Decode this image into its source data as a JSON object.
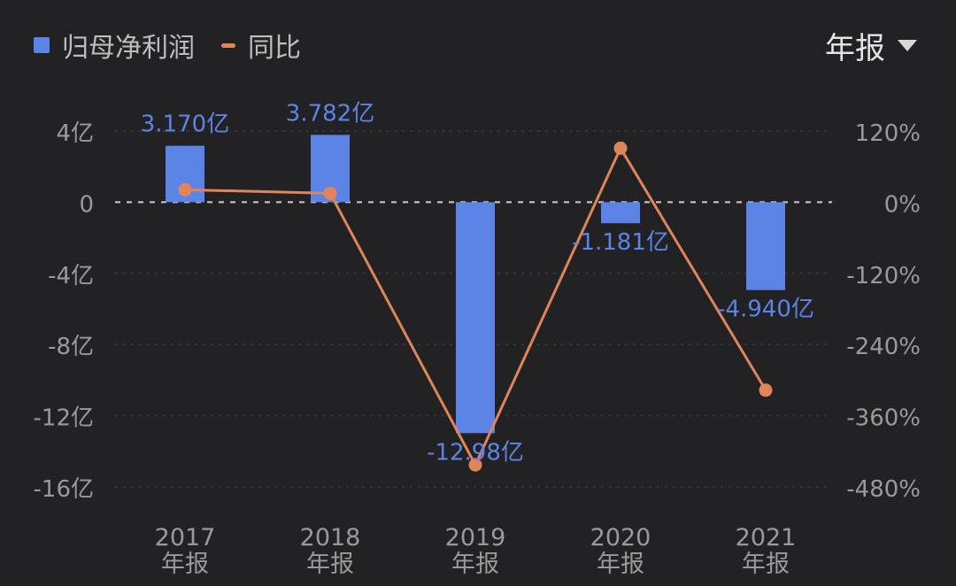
{
  "legend": {
    "items": [
      {
        "label": "归母净利润",
        "color": "#5c84e6",
        "marker": "square"
      },
      {
        "label": "同比",
        "color": "#e0855a",
        "marker": "dash"
      }
    ]
  },
  "period_selector": {
    "label": "年报",
    "icon": "chevron-down-icon"
  },
  "chart_data": {
    "type": "bar",
    "categories": [
      "2017\n年报",
      "2018\n年报",
      "2019\n年报",
      "2020\n年报",
      "2021\n年报"
    ],
    "x_labels": [
      {
        "year": "2017",
        "period": "年报"
      },
      {
        "year": "2018",
        "period": "年报"
      },
      {
        "year": "2019",
        "period": "年报"
      },
      {
        "year": "2020",
        "period": "年报"
      },
      {
        "year": "2021",
        "period": "年报"
      }
    ],
    "series": [
      {
        "name": "归母净利润",
        "type": "bar",
        "axis": "left",
        "color": "#5c84e6",
        "values": [
          3.17,
          3.782,
          -12.98,
          -1.181,
          -4.94
        ],
        "labels": [
          "3.170亿",
          "3.782亿",
          "-12.98亿",
          "-1.181亿",
          "-4.940亿"
        ]
      },
      {
        "name": "同比",
        "type": "line",
        "axis": "right",
        "color": "#e0855a",
        "values": [
          21,
          15,
          -443,
          91,
          -317
        ]
      }
    ],
    "y_left": {
      "ticks": [
        4,
        0,
        -4,
        -8,
        -12,
        -16
      ],
      "tick_labels": [
        "4亿",
        "0",
        "-4亿",
        "-8亿",
        "-12亿",
        "-16亿"
      ],
      "range": [
        -16,
        4
      ]
    },
    "y_right": {
      "ticks": [
        120,
        0,
        -120,
        -240,
        -360,
        -480
      ],
      "tick_labels": [
        "120%",
        "0%",
        "-120%",
        "-240%",
        "-360%",
        "-480%"
      ],
      "range": [
        -480,
        120
      ]
    },
    "grid": true,
    "legend_position": "top-left"
  }
}
